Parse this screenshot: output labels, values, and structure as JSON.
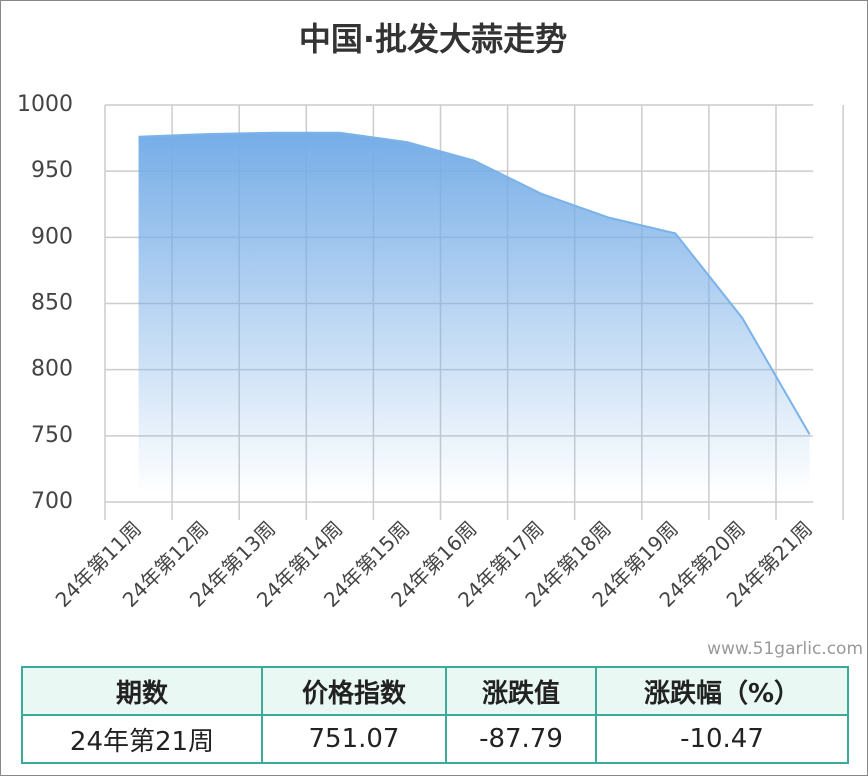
{
  "chart_data": {
    "type": "area",
    "title": "中国·批发大蒜走势",
    "categories": [
      "24年第11周",
      "24年第12周",
      "24年第13周",
      "24年第14周",
      "24年第15周",
      "24年第16周",
      "24年第17周",
      "24年第18周",
      "24年第19周",
      "24年第20周",
      "24年第21周"
    ],
    "values": [
      976,
      978,
      979,
      979,
      972,
      958,
      933,
      915,
      903,
      838.86,
      751.07
    ],
    "color": "#7ab3ea",
    "ylim": [
      700,
      1000
    ],
    "yticks": [
      700,
      750,
      800,
      850,
      900,
      950,
      1000
    ],
    "grid": true
  },
  "watermark": "www.51garlic.com",
  "table": {
    "header": [
      "期数",
      "价格指数",
      "涨跌值",
      "涨跌幅（%）"
    ],
    "rows": [
      [
        "24年第21周",
        "751.07",
        "-87.79",
        "-10.47"
      ]
    ]
  }
}
